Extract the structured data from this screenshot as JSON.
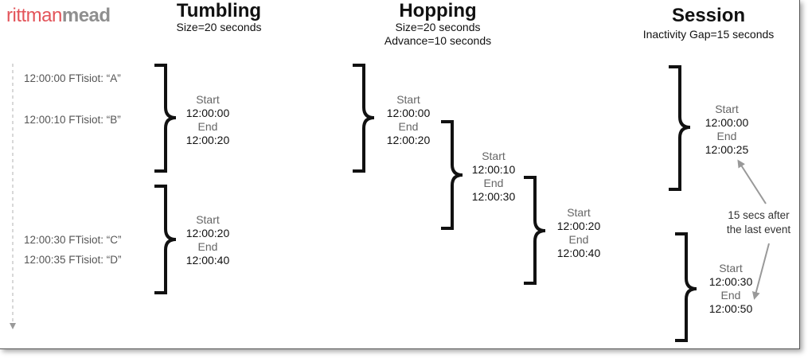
{
  "logo": {
    "part1": "rittman",
    "part2": "mead"
  },
  "sections": {
    "tumbling": {
      "title": "Tumbling",
      "sub1": "Size=20 seconds"
    },
    "hopping": {
      "title": "Hopping",
      "sub1": "Size=20 seconds",
      "sub2": "Advance=10 seconds"
    },
    "session": {
      "title": "Session",
      "sub1": "Inactivity Gap=15 seconds"
    }
  },
  "events": [
    "12:00:00 FTisiot: “A”",
    "12:00:10 FTisiot: “B”",
    "12:00:30 FTisiot: “C”",
    "12:00:35 FTisiot: “D”"
  ],
  "windows": {
    "tumbling": [
      {
        "start_label": "Start",
        "start": "12:00:00",
        "end_label": "End",
        "end": "12:00:20"
      },
      {
        "start_label": "Start",
        "start": "12:00:20",
        "end_label": "End",
        "end": "12:00:40"
      }
    ],
    "hopping": [
      {
        "start_label": "Start",
        "start": "12:00:00",
        "end_label": "End",
        "end": "12:00:20"
      },
      {
        "start_label": "Start",
        "start": "12:00:10",
        "end_label": "End",
        "end": "12:00:30"
      },
      {
        "start_label": "Start",
        "start": "12:00:20",
        "end_label": "End",
        "end": "12:00:40"
      }
    ],
    "session": [
      {
        "start_label": "Start",
        "start": "12:00:00",
        "end_label": "End",
        "end": "12:00:25"
      },
      {
        "start_label": "Start",
        "start": "12:00:30",
        "end_label": "End",
        "end": "12:00:50"
      }
    ]
  },
  "annotation": {
    "line1": "15 secs after",
    "line2": "the last event"
  }
}
